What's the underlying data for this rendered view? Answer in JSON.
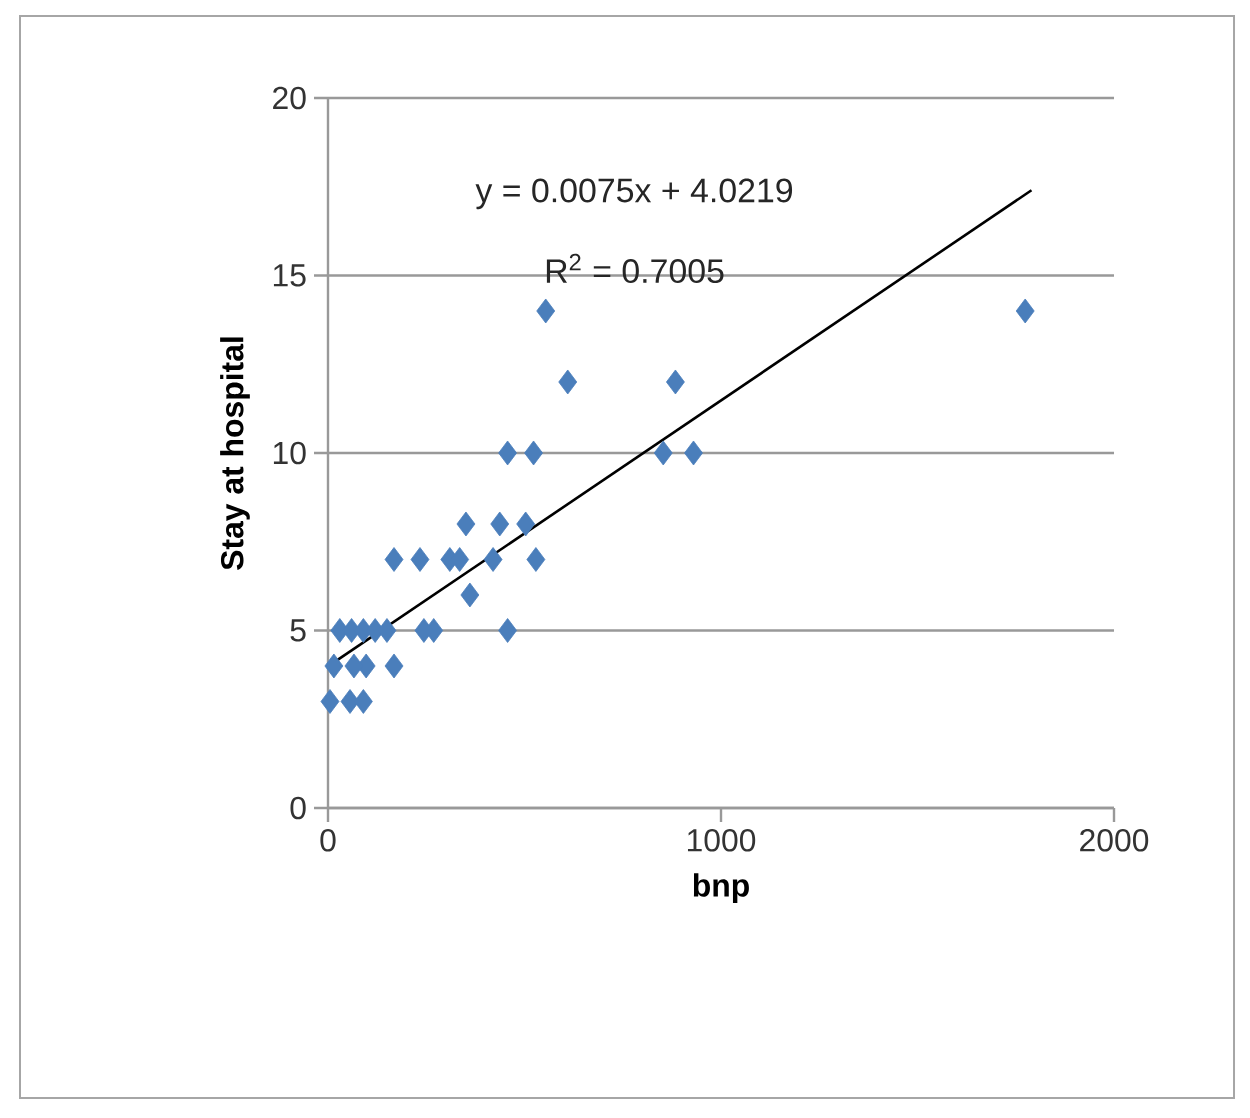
{
  "chart_data": {
    "type": "scatter",
    "xlabel": "bnp",
    "ylabel": "Stay at hospital",
    "xlim": [
      0,
      2000
    ],
    "ylim": [
      0,
      20
    ],
    "xticks": [
      0,
      1000,
      2000
    ],
    "yticks": [
      0,
      5,
      10,
      15,
      20
    ],
    "grid": "y",
    "marker": "diamond",
    "annotations": [
      "y = 0.0075x + 4.0219",
      "R$^{2}$ = 0.7005"
    ],
    "series": [
      {
        "color": "#4a7ebb",
        "x": [
          1774,
          554,
          610,
          884,
          853,
          930,
          457,
          523,
          351,
          437,
          503,
          168,
          234,
          310,
          335,
          420,
          529,
          361,
          457,
          269,
          244,
          30,
          60,
          90,
          120,
          150,
          168,
          97,
          15,
          66,
          5,
          56,
          90
        ],
        "values": [
          14,
          14,
          12,
          12,
          10,
          10,
          10,
          10,
          8,
          8,
          8,
          7,
          7,
          7,
          7,
          7,
          7,
          6,
          5,
          5,
          5,
          5,
          5,
          5,
          5,
          5,
          4,
          4,
          4,
          4,
          3,
          3,
          3
        ]
      },
      {
        "type": "line",
        "color": "#000000",
        "x": [
          15,
          1790
        ],
        "values": [
          4.1,
          17.4
        ],
        "marker": "none"
      }
    ]
  }
}
